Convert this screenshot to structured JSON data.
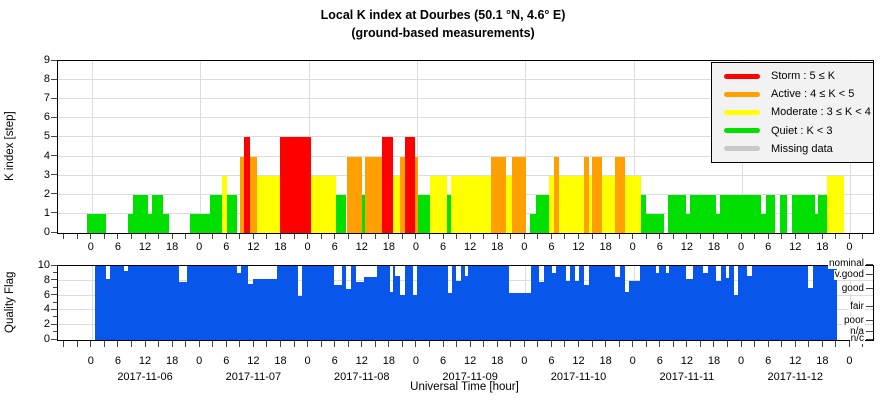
{
  "title": {
    "line1": "Local K index at Dourbes (50.1 °N, 4.6° E)",
    "line2": "(ground-based measurements)"
  },
  "axes": {
    "k_ylabel": "K index [step]",
    "k_yticks": [
      0,
      1,
      2,
      3,
      4,
      5,
      6,
      7,
      8,
      9
    ],
    "q_ylabel": "Quality Flag",
    "q_yticks_major": [
      0,
      2,
      4,
      6,
      8,
      10
    ],
    "q_yticks_minor": [
      1,
      3,
      5,
      7,
      9
    ],
    "xlabel": "Universal Time [hour]",
    "hour_labels": [
      "0",
      "6",
      "12",
      "18"
    ],
    "dates": [
      "2017-11-06",
      "2017-11-07",
      "2017-11-08",
      "2017-11-09",
      "2017-11-10",
      "2017-11-11",
      "2017-11-12"
    ],
    "quality_levels": [
      {
        "label": "nominal",
        "value": 10.25
      },
      {
        "label": "v.good",
        "value": 8.8
      },
      {
        "label": "good",
        "value": 6.9
      },
      {
        "label": "fair",
        "value": 4.5
      },
      {
        "label": "poor",
        "value": 2.6
      },
      {
        "label": "n/a",
        "value": 1.1
      },
      {
        "label": "n/c",
        "value": 0.1
      }
    ]
  },
  "legend": {
    "items": [
      {
        "name": "storm",
        "label": "Storm : 5 ≤ K",
        "color": "#ff0000"
      },
      {
        "name": "active",
        "label": "Active : 4 ≤ K < 5",
        "color": "#ffa000"
      },
      {
        "name": "moderate",
        "label": "Moderate : 3 ≤ K < 4",
        "color": "#ffff00"
      },
      {
        "name": "quiet",
        "label": "Quiet : K < 3",
        "color": "#00df00"
      },
      {
        "name": "missing",
        "label": "Missing data",
        "color": "#c8c8c8"
      }
    ]
  },
  "colors": {
    "storm": "#ff0000",
    "active": "#ffa000",
    "moderate": "#ffff00",
    "quiet": "#00df00",
    "missing": "#c8c8c8",
    "quality": "#0857ea",
    "grid": "#dcdcdc",
    "frame": "#000000"
  },
  "chart_data": [
    {
      "type": "bar",
      "title": "Local K index at Dourbes (50.1 °N, 4.6° E) (ground-based measurements)",
      "ylabel": "K index [step]",
      "ylim": [
        0,
        9
      ],
      "x_axis": "hours relative to 2017-11-06 00:00 UT, plot range -7.5 to 173",
      "grid": true,
      "legend_position": "upper right",
      "segments_format": [
        "start_hour",
        "end_hour",
        "K_value"
      ],
      "segments": [
        [
          -1,
          3.1,
          1
        ],
        [
          8.1,
          9.1,
          1
        ],
        [
          9.1,
          12.5,
          2
        ],
        [
          12.5,
          13.4,
          1
        ],
        [
          13.4,
          15.7,
          2
        ],
        [
          15.7,
          17,
          1
        ],
        [
          21.8,
          26.1,
          1
        ],
        [
          26.1,
          28.8,
          2
        ],
        [
          28.8,
          30,
          3
        ],
        [
          30,
          32.1,
          2
        ],
        [
          32.8,
          33.7,
          4
        ],
        [
          33.7,
          35,
          5
        ],
        [
          35,
          36.5,
          4
        ],
        [
          36.5,
          41.7,
          3
        ],
        [
          41.7,
          48.5,
          5
        ],
        [
          48.5,
          54,
          3
        ],
        [
          54,
          56.2,
          2
        ],
        [
          56.6,
          59.9,
          4
        ],
        [
          59.9,
          60.6,
          2
        ],
        [
          60.6,
          64.3,
          4
        ],
        [
          64.3,
          66.8,
          5
        ],
        [
          66.8,
          68.3,
          3
        ],
        [
          68.3,
          69.4,
          4
        ],
        [
          69.4,
          71.6,
          5
        ],
        [
          71.6,
          72.3,
          4
        ],
        [
          72.3,
          74.9,
          2
        ],
        [
          74.9,
          78.6,
          3
        ],
        [
          78.7,
          79.5,
          2
        ],
        [
          79.5,
          88.3,
          3
        ],
        [
          88.3,
          91.7,
          4
        ],
        [
          91.7,
          93,
          3
        ],
        [
          93,
          96.1,
          4
        ],
        [
          97.1,
          98.3,
          1
        ],
        [
          98.3,
          101.2,
          2
        ],
        [
          101.2,
          102.3,
          3
        ],
        [
          102.3,
          103.4,
          4
        ],
        [
          103.4,
          108.9,
          3
        ],
        [
          108.9,
          110,
          4
        ],
        [
          110,
          110.7,
          3
        ],
        [
          110.7,
          112.9,
          4
        ],
        [
          112.9,
          115.9,
          3
        ],
        [
          115.9,
          118.1,
          4
        ],
        [
          118.1,
          121.7,
          3
        ],
        [
          121.7,
          122.8,
          2
        ],
        [
          122.8,
          126.8,
          1
        ],
        [
          127.7,
          131.6,
          2
        ],
        [
          131.6,
          132.5,
          1
        ],
        [
          132.5,
          138.2,
          2
        ],
        [
          138.2,
          139.1,
          1
        ],
        [
          139.1,
          148.1,
          2
        ],
        [
          148.1,
          149.2,
          1
        ],
        [
          149.2,
          151.4,
          2
        ],
        [
          152.5,
          153.9,
          2
        ],
        [
          155,
          160.1,
          2
        ],
        [
          160.1,
          160.9,
          1
        ],
        [
          160.9,
          162.9,
          2
        ],
        [
          162.9,
          166.5,
          3
        ]
      ]
    },
    {
      "type": "bar",
      "title": "Quality Flag",
      "ylabel": "Quality Flag",
      "ylim": [
        0,
        10
      ],
      "x_axis": "hours relative to 2017-11-06 00:00 UT, plot range -7.5 to 173",
      "grid": true,
      "segments_format": [
        "start_hour",
        "end_hour",
        "quality_value"
      ],
      "segments": [
        [
          0.75,
          3.1,
          10
        ],
        [
          3.1,
          4.1,
          8.3
        ],
        [
          4.1,
          7.2,
          10
        ],
        [
          7.2,
          7.9,
          9.3
        ],
        [
          7.9,
          19.2,
          10
        ],
        [
          19.2,
          21.1,
          7.8
        ],
        [
          21.1,
          32.1,
          10
        ],
        [
          32.1,
          33,
          9.1
        ],
        [
          33,
          34.6,
          10
        ],
        [
          34.6,
          35.7,
          7.6
        ],
        [
          35.7,
          40.9,
          8.2
        ],
        [
          40.9,
          45.6,
          10
        ],
        [
          45.6,
          46.5,
          6
        ],
        [
          46.5,
          53.6,
          10
        ],
        [
          53.6,
          55.3,
          7.5
        ],
        [
          55.3,
          56.2,
          10
        ],
        [
          56.2,
          57.3,
          6.9
        ],
        [
          57.3,
          58.4,
          10
        ],
        [
          58.4,
          60.2,
          7.9
        ],
        [
          60.2,
          63.2,
          8.5
        ],
        [
          63.2,
          66.1,
          10
        ],
        [
          66.1,
          66.8,
          6.5
        ],
        [
          66.8,
          67.2,
          10
        ],
        [
          67.2,
          68.3,
          8.7
        ],
        [
          68.3,
          69.3,
          6.1
        ],
        [
          69.3,
          71.2,
          10
        ],
        [
          71.2,
          72.1,
          6.1
        ],
        [
          72.1,
          78.9,
          10
        ],
        [
          78.9,
          79.8,
          6.3
        ],
        [
          79.8,
          80.7,
          10
        ],
        [
          80.7,
          81.8,
          8
        ],
        [
          81.8,
          82.6,
          10
        ],
        [
          82.6,
          83.3,
          8.7
        ],
        [
          83.3,
          92.4,
          10
        ],
        [
          92.4,
          97.2,
          6.4
        ],
        [
          97.2,
          99,
          10
        ],
        [
          99,
          100.1,
          7.9
        ],
        [
          100.1,
          101.9,
          10
        ],
        [
          101.9,
          102.7,
          9
        ],
        [
          102.7,
          104.9,
          10
        ],
        [
          104.9,
          106,
          8
        ],
        [
          106,
          107.1,
          10
        ],
        [
          107.1,
          107.9,
          8
        ],
        [
          107.9,
          108.9,
          10
        ],
        [
          108.9,
          110,
          7.5
        ],
        [
          110,
          115.9,
          10
        ],
        [
          115.9,
          117,
          8.5
        ],
        [
          117,
          118.1,
          10
        ],
        [
          118.1,
          119,
          6.5
        ],
        [
          119,
          121.5,
          8
        ],
        [
          121.5,
          125,
          10
        ],
        [
          125,
          125.7,
          9
        ],
        [
          125.7,
          127.2,
          10
        ],
        [
          127.2,
          127.9,
          9.1
        ],
        [
          127.9,
          131.6,
          10
        ],
        [
          131.6,
          133.1,
          8.2
        ],
        [
          133.1,
          135.3,
          10
        ],
        [
          135.3,
          136.4,
          9
        ],
        [
          136.4,
          138.2,
          10
        ],
        [
          138.2,
          139.3,
          8
        ],
        [
          139.3,
          140.4,
          10
        ],
        [
          140.4,
          141.1,
          8.4
        ],
        [
          141.1,
          142.2,
          10
        ],
        [
          142.2,
          143,
          6.1
        ],
        [
          143,
          145.1,
          10
        ],
        [
          145.1,
          146.2,
          8.6
        ],
        [
          146.2,
          158.6,
          10
        ],
        [
          158.6,
          159.7,
          7
        ],
        [
          159.7,
          165,
          10
        ]
      ]
    }
  ]
}
